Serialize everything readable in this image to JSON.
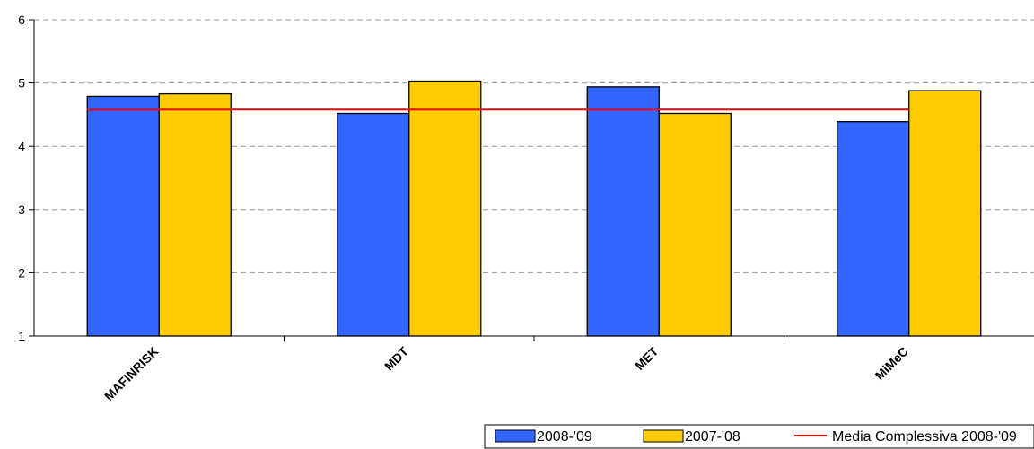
{
  "chart_data": {
    "type": "bar",
    "categories": [
      "MAFINRISK",
      "MDT",
      "MET",
      "MiMeC"
    ],
    "series": [
      {
        "name": "2008-'09",
        "values": [
          4.79,
          4.52,
          4.94,
          4.39
        ],
        "color": "#3366FF"
      },
      {
        "name": "2007-'08",
        "values": [
          4.83,
          5.03,
          4.52,
          4.88
        ],
        "color": "#FFCC00"
      }
    ],
    "reference_line": {
      "name": "Media Complessiva 2008-'09",
      "value": 4.58,
      "color": "#FF0000"
    },
    "ylim": [
      1,
      6
    ],
    "yticks": [
      "1",
      "2",
      "3",
      "4",
      "5",
      "6"
    ],
    "grid": true,
    "legend_position": "bottom-right",
    "title": "",
    "xlabel": "",
    "ylabel": ""
  }
}
